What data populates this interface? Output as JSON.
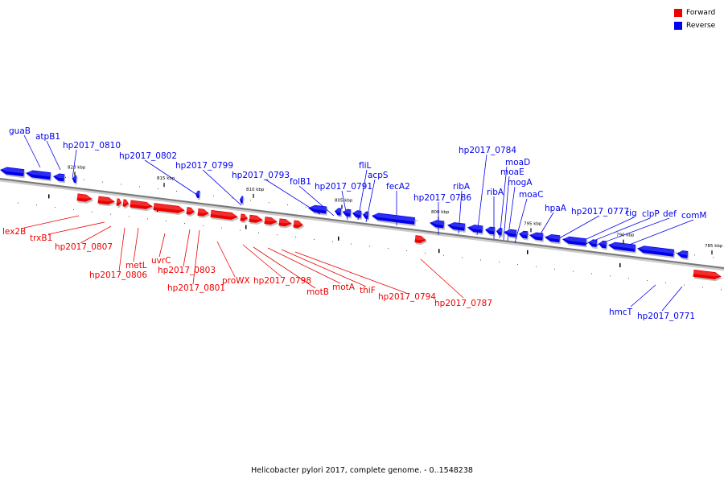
{
  "legend": {
    "items": [
      {
        "label": "Forward",
        "color": "#ee0000"
      },
      {
        "label": "Reverse",
        "color": "#0000ee"
      }
    ]
  },
  "caption": "Helicobacter pylori 2017, complete genome. - 0..1548238",
  "colors": {
    "forward": "#ee0000",
    "reverse": "#0000ee",
    "backbone": "#777777"
  },
  "scale": {
    "ticks": [
      "820 kbp",
      "815 kbp",
      "810 kbp",
      "805 kbp",
      "800 kbp",
      "795 kbp",
      "790 kbp",
      "785 kbp"
    ]
  },
  "genes": {
    "forward": [
      "lex2B",
      "trxB1",
      "hp2017_0807",
      "metL",
      "hp2017_0806",
      "uvrC",
      "hp2017_0803",
      "hp2017_0801",
      "proWX",
      "hp2017_0798",
      "motB",
      "motA",
      "thiF",
      "hp2017_0794",
      "hp2017_0787"
    ],
    "reverse": [
      "guaB",
      "atpB1",
      "hp2017_0810",
      "hp2017_0802",
      "hp2017_0799",
      "hp2017_0793",
      "folB1",
      "fliL",
      "hp2017_0791",
      "acpS",
      "fecA2",
      "hp2017_0784",
      "ribA",
      "hp2017_0786",
      "moaD",
      "moaE",
      "ribA",
      "mogA",
      "moaC",
      "hpaA",
      "hp2017_0777",
      "tig",
      "clpP",
      "def",
      "comM",
      "hmcT",
      "hp2017_0771"
    ]
  }
}
